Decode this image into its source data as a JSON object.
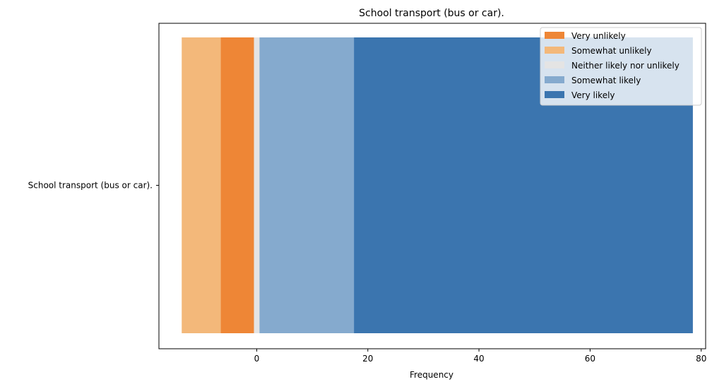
{
  "chart_data": {
    "type": "bar",
    "orientation": "horizontal-diverging-stacked",
    "title": "School transport (bus or car).",
    "xlabel": "Frequency",
    "ylabel": "",
    "categories": [
      "School transport (bus or car)."
    ],
    "xlim": [
      -17.6,
      80.8
    ],
    "xticks": [
      0,
      20,
      40,
      60,
      80
    ],
    "grid": false,
    "legend_position": "top-right",
    "series": [
      {
        "name": "Very unlikely",
        "color": "#ee8636",
        "start": -6.5,
        "end": -0.5
      },
      {
        "name": "Somewhat unlikely",
        "color": "#f3b87a",
        "start": -13.5,
        "end": -6.5
      },
      {
        "name": "Neither likely nor unlikely",
        "color": "#e4e4e4",
        "start": -0.5,
        "end": 0.5
      },
      {
        "name": "Somewhat likely",
        "color": "#85aace",
        "start": 0.5,
        "end": 17.5
      },
      {
        "name": "Very likely",
        "color": "#3b75af",
        "start": 17.5,
        "end": 78.5
      }
    ]
  }
}
